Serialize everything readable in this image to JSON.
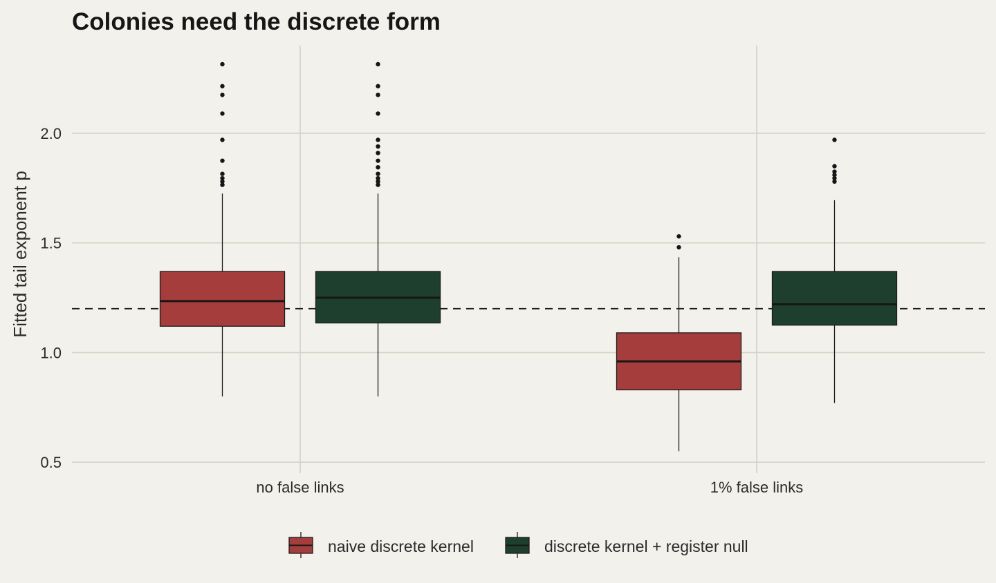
{
  "chart_data": {
    "type": "box",
    "title": "Colonies need the discrete form",
    "xlabel": "",
    "ylabel": "Fitted tail exponent p",
    "categories": [
      "no false links",
      "1% false links"
    ],
    "yticks": [
      "0.5",
      "1.0",
      "1.5",
      "2.0"
    ],
    "ylim": [
      0.45,
      2.4
    ],
    "reference_line": {
      "y": 1.2,
      "style": "dashed"
    },
    "grid": true,
    "legend_position": "bottom",
    "series": [
      {
        "name": "naive discrete kernel",
        "color": "#a63d3d",
        "boxes": [
          {
            "category": "no false links",
            "whisker_low": 0.8,
            "q1": 1.12,
            "median": 1.235,
            "q3": 1.37,
            "whisker_high": 1.725,
            "outliers": [
              1.765,
              1.78,
              1.795,
              1.815,
              1.875,
              1.97,
              2.09,
              2.175,
              2.215,
              2.315
            ]
          },
          {
            "category": "1% false links",
            "whisker_low": 0.55,
            "q1": 0.83,
            "median": 0.96,
            "q3": 1.09,
            "whisker_high": 1.435,
            "outliers": [
              1.48,
              1.53
            ]
          }
        ]
      },
      {
        "name": "discrete kernel + register null",
        "color": "#1e3f2e",
        "boxes": [
          {
            "category": "no false links",
            "whisker_low": 0.8,
            "q1": 1.135,
            "median": 1.25,
            "q3": 1.37,
            "whisker_high": 1.725,
            "outliers": [
              1.765,
              1.78,
              1.795,
              1.815,
              1.845,
              1.875,
              1.91,
              1.94,
              1.97,
              2.09,
              2.175,
              2.215,
              2.315
            ]
          },
          {
            "category": "1% false links",
            "whisker_low": 0.77,
            "q1": 1.125,
            "median": 1.22,
            "q3": 1.37,
            "whisker_high": 1.695,
            "outliers": [
              1.78,
              1.795,
              1.81,
              1.825,
              1.85,
              1.97
            ]
          }
        ]
      }
    ]
  }
}
